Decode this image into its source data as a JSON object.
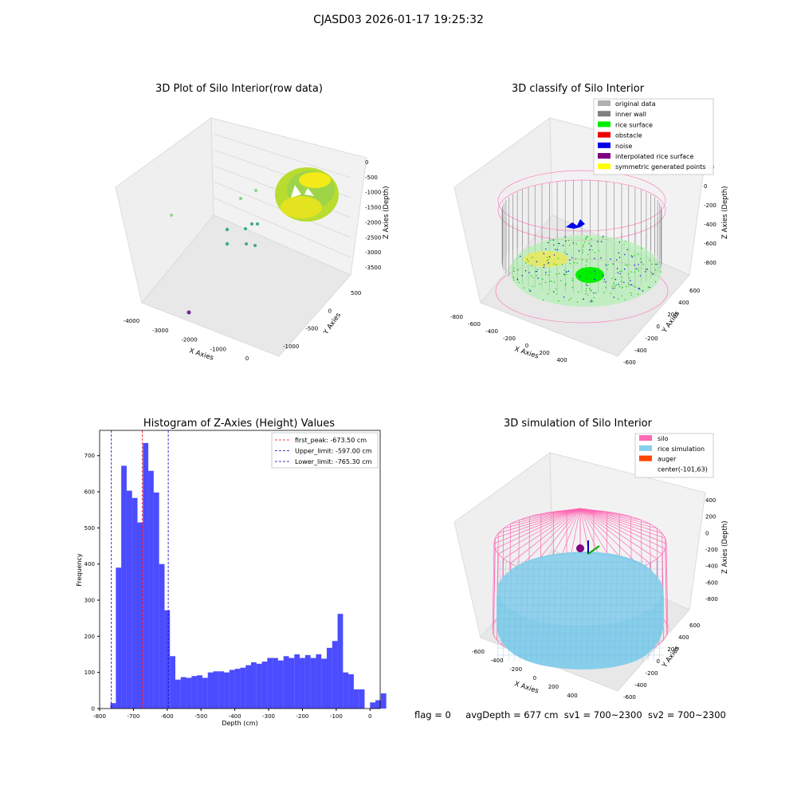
{
  "suptitle": "CJASD03 2026-01-17 19:25:32",
  "panels": {
    "raw": {
      "title": "3D Plot of Silo Interior(row data)",
      "xlabel": "X Axies",
      "ylabel": "Y Axies",
      "zlabel": "Z Axies (Depth)",
      "xticks": [
        "-4000",
        "-3000",
        "-2000",
        "-1000",
        "0"
      ],
      "yticks": [
        "500",
        "0",
        "-500",
        "-1000"
      ],
      "zticks": [
        "0",
        "-500",
        "-1000",
        "-1500",
        "-2000",
        "-2500",
        "-3000",
        "-3500"
      ]
    },
    "classify": {
      "title": "3D classify of Silo Interior",
      "xlabel": "X Axies",
      "ylabel": "Y Axies",
      "zlabel": "Z Axies (Depth)",
      "xticks": [
        "-800",
        "-600",
        "-400",
        "-200",
        "0",
        "200",
        "400"
      ],
      "yticks": [
        "600",
        "400",
        "200",
        "0",
        "-200",
        "-400",
        "-600"
      ],
      "zticks": [
        "200",
        "0",
        "-200",
        "-400",
        "-600",
        "-800"
      ],
      "legend": [
        {
          "label": "original data",
          "color": "#b0b0b0"
        },
        {
          "label": "inner wall",
          "color": "#808080"
        },
        {
          "label": "rice surface",
          "color": "#00ee00"
        },
        {
          "label": "obstacle",
          "color": "#ee0000"
        },
        {
          "label": "noise",
          "color": "#0000ee"
        },
        {
          "label": "interpolated rice surface",
          "color": "#800080"
        },
        {
          "label": "symmetric generated points",
          "color": "#ffff00"
        }
      ]
    },
    "simulation": {
      "title": "3D simulation of Silo Interior",
      "xlabel": "X Axies",
      "ylabel": "Y Axies",
      "zlabel": "Z Axies (Depth)",
      "xticks": [
        "-600",
        "-400",
        "-200",
        "0",
        "200",
        "400"
      ],
      "yticks": [
        "600",
        "400",
        "200",
        "0",
        "-200",
        "-400",
        "-600"
      ],
      "zticks": [
        "400",
        "200",
        "0",
        "-200",
        "-400",
        "-600",
        "-800"
      ],
      "legend": [
        {
          "label": "silo",
          "color": "#ff69b4"
        },
        {
          "label": "rice simulation",
          "color": "#87ceeb"
        },
        {
          "label": "auger",
          "color": "#ff4500"
        },
        {
          "label": "center(-101,63)",
          "color": ""
        }
      ]
    }
  },
  "chart_data": {
    "type": "bar",
    "title": "Histogram of Z-Axies (Height) Values",
    "xlabel": "Depth (cm)",
    "ylabel": "Frequency",
    "xlim": [
      -800,
      30
    ],
    "ylim": [
      0,
      770
    ],
    "xticks": [
      -800,
      -700,
      -600,
      -500,
      -400,
      -300,
      -200,
      -100,
      0
    ],
    "yticks": [
      0,
      100,
      200,
      300,
      400,
      500,
      600,
      700
    ],
    "bar_color": "#0000ff",
    "bin_width": 16,
    "bin_start": -768,
    "values": [
      15,
      390,
      672,
      603,
      583,
      515,
      735,
      658,
      598,
      400,
      272,
      145,
      80,
      87,
      85,
      90,
      92,
      85,
      100,
      103,
      103,
      100,
      107,
      110,
      113,
      120,
      128,
      124,
      130,
      140,
      140,
      133,
      145,
      140,
      150,
      140,
      148,
      140,
      150,
      138,
      168,
      187,
      262,
      100,
      95,
      53,
      53,
      0,
      17,
      23,
      42
    ],
    "vlines": [
      {
        "label": "first_peak: -673.50 cm",
        "value": -673.5,
        "color": "#ff0000"
      },
      {
        "label": "Upper_limit: -597.00 cm",
        "value": -597.0,
        "color": "#0000cc"
      },
      {
        "label": "Lower_limit: -765.30 cm",
        "value": -765.3,
        "color": "#0000cc"
      }
    ],
    "legend_position": "top-right"
  },
  "footer": {
    "flag": "flag = 0",
    "avg": "avgDepth = 677 cm",
    "sv1": "sv1 = 700~2300",
    "sv2": "sv2 = 700~2300"
  }
}
